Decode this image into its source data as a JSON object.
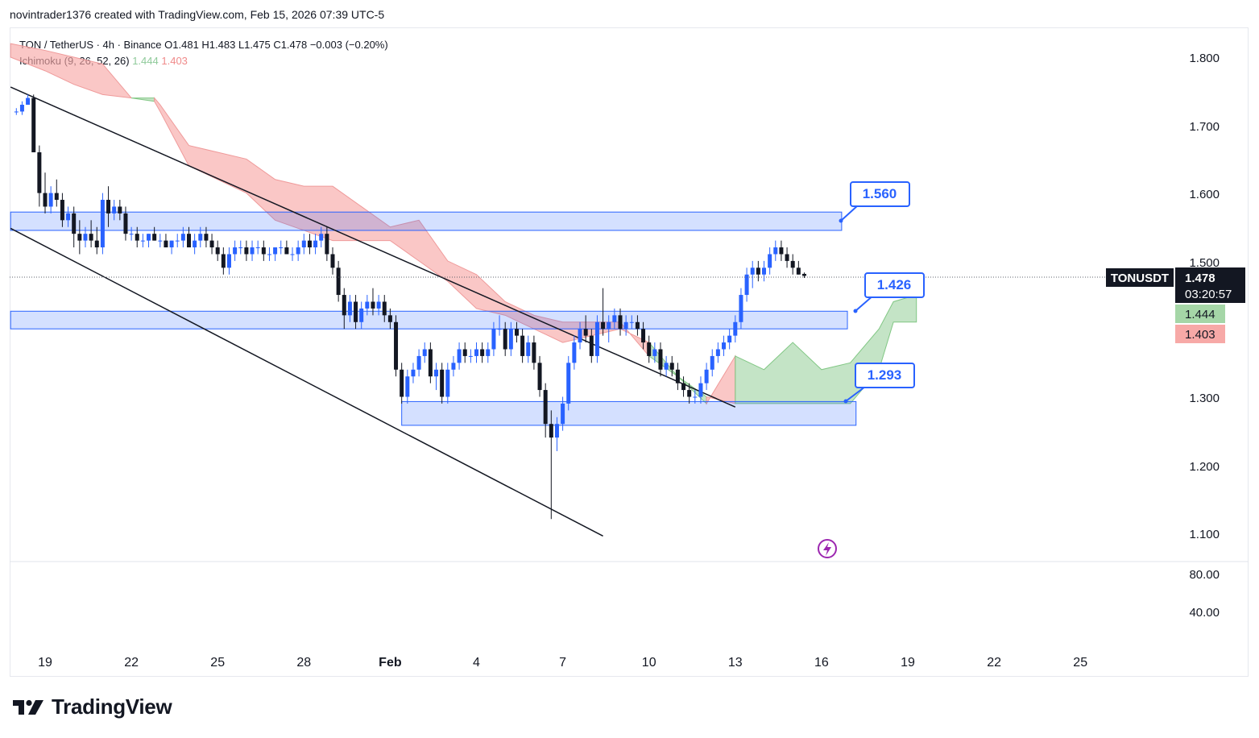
{
  "header": {
    "attribution": "novintrader1376 created with TradingView.com, Feb 15, 2026 07:39 UTC-5"
  },
  "legend": {
    "symbol_line": "TON / TetherUS · 4h · Binance  O1.481  H1.483  L1.475  C1.478  −0.003 (−0.20%)",
    "indicator_name": "Ichimoku (9, 26, 52, 26)",
    "indicator_val1": "1.444",
    "indicator_val2": "1.403"
  },
  "price_tag": {
    "symbol": "TONUSDT",
    "price": "1.478",
    "countdown": "03:20:57",
    "span_a": "1.444",
    "span_b": "1.403"
  },
  "callouts": [
    "1.560",
    "1.426",
    "1.293"
  ],
  "branding": {
    "logo_text": "TradingView"
  },
  "colors": {
    "up": "#2962ff",
    "down": "#131722",
    "cloud_green": "#a5d6a7",
    "cloud_red": "#f7a9a7",
    "zone": "#2962ff",
    "callout": "#2962ff"
  },
  "chart_data": {
    "type": "candlestick",
    "title": "TON / TetherUS · 4h · Binance",
    "y_axis": {
      "ylim": [
        1.05,
        1.82
      ],
      "ticks": [
        "1.800",
        "1.700",
        "1.600",
        "1.500",
        "1.300",
        "1.200",
        "1.100"
      ]
    },
    "oscillator_axis": {
      "ticks": [
        "80.00",
        "40.00"
      ]
    },
    "x_axis": {
      "tick_labels": [
        "19",
        "22",
        "25",
        "28",
        "Feb",
        "4",
        "7",
        "10",
        "13",
        "16",
        "19",
        "22",
        "25"
      ],
      "tick_day_index": [
        0,
        3,
        6,
        9,
        12,
        15,
        18,
        21,
        24,
        27,
        30,
        33,
        36
      ]
    },
    "zones": [
      {
        "name": "resistance-zone-1.560",
        "x0": -1.2,
        "x1": 27.7,
        "top": 1.572,
        "bottom": 1.545
      },
      {
        "name": "zone-1.426",
        "x0": -1.2,
        "x1": 27.9,
        "top": 1.426,
        "bottom": 1.4
      },
      {
        "name": "support-zone-1.293",
        "x0": 12.4,
        "x1": 28.2,
        "top": 1.293,
        "bottom": 1.258
      }
    ],
    "trendlines": [
      {
        "name": "upper-trendline",
        "x0": -1.2,
        "y0": 1.756,
        "x1": 24.0,
        "y1": 1.285
      },
      {
        "name": "lower-trendline",
        "x0": -1.2,
        "y0": 1.548,
        "x1": 19.4,
        "y1": 1.095
      }
    ],
    "ichimoku_cloud": {
      "x": [
        -1.2,
        0,
        1,
        2,
        3,
        3.8,
        4,
        5,
        6,
        7,
        8,
        9,
        10,
        11,
        12,
        13,
        14,
        15,
        16,
        17,
        18,
        19,
        20,
        21,
        22,
        23,
        24,
        25,
        26,
        27,
        28,
        29,
        29.5,
        30.3
      ],
      "span_a": [
        1.8,
        1.78,
        1.76,
        1.745,
        1.74,
        1.735,
        1.72,
        1.64,
        1.62,
        1.6,
        1.56,
        1.545,
        1.53,
        1.53,
        1.53,
        1.5,
        1.47,
        1.43,
        1.42,
        1.4,
        1.38,
        1.39,
        1.4,
        1.38,
        1.33,
        1.29,
        1.36,
        1.34,
        1.38,
        1.34,
        1.35,
        1.4,
        1.44,
        1.45
      ],
      "span_b": [
        1.82,
        1.81,
        1.8,
        1.79,
        1.74,
        1.74,
        1.73,
        1.67,
        1.66,
        1.65,
        1.62,
        1.61,
        1.61,
        1.58,
        1.55,
        1.56,
        1.5,
        1.48,
        1.44,
        1.42,
        1.41,
        1.41,
        1.41,
        1.36,
        1.33,
        1.3,
        1.29,
        1.29,
        1.29,
        1.29,
        1.29,
        1.34,
        1.41,
        1.41
      ]
    },
    "candles": [
      [
        -1.0,
        1.72,
        1.725,
        1.715,
        1.72
      ],
      [
        -0.8,
        1.72,
        1.735,
        1.715,
        1.73
      ],
      [
        -0.6,
        1.73,
        1.745,
        1.735,
        1.74
      ],
      [
        -0.4,
        1.74,
        1.745,
        1.66,
        1.66
      ],
      [
        -0.2,
        1.66,
        1.67,
        1.58,
        1.6
      ],
      [
        0.0,
        1.6,
        1.63,
        1.57,
        1.58
      ],
      [
        0.2,
        1.58,
        1.61,
        1.57,
        1.6
      ],
      [
        0.4,
        1.6,
        1.62,
        1.58,
        1.59
      ],
      [
        0.6,
        1.59,
        1.6,
        1.55,
        1.56
      ],
      [
        0.8,
        1.56,
        1.58,
        1.55,
        1.57
      ],
      [
        1.0,
        1.57,
        1.58,
        1.52,
        1.54
      ],
      [
        1.2,
        1.54,
        1.56,
        1.51,
        1.53
      ],
      [
        1.4,
        1.53,
        1.55,
        1.52,
        1.54
      ],
      [
        1.6,
        1.54,
        1.56,
        1.52,
        1.53
      ],
      [
        1.8,
        1.53,
        1.55,
        1.51,
        1.52
      ],
      [
        2.0,
        1.52,
        1.6,
        1.51,
        1.59
      ],
      [
        2.2,
        1.59,
        1.61,
        1.55,
        1.57
      ],
      [
        2.4,
        1.57,
        1.59,
        1.56,
        1.58
      ],
      [
        2.6,
        1.58,
        1.59,
        1.56,
        1.57
      ],
      [
        2.8,
        1.57,
        1.58,
        1.53,
        1.54
      ],
      [
        3.0,
        1.54,
        1.55,
        1.53,
        1.54
      ],
      [
        3.2,
        1.54,
        1.55,
        1.52,
        1.53
      ],
      [
        3.4,
        1.53,
        1.54,
        1.52,
        1.53
      ],
      [
        3.6,
        1.53,
        1.54,
        1.52,
        1.54
      ],
      [
        3.8,
        1.54,
        1.55,
        1.53,
        1.53
      ],
      [
        4.0,
        1.53,
        1.54,
        1.52,
        1.53
      ],
      [
        4.2,
        1.53,
        1.54,
        1.52,
        1.52
      ],
      [
        4.4,
        1.52,
        1.53,
        1.51,
        1.53
      ],
      [
        4.6,
        1.53,
        1.54,
        1.52,
        1.53
      ],
      [
        4.8,
        1.53,
        1.55,
        1.52,
        1.54
      ],
      [
        5.0,
        1.54,
        1.55,
        1.52,
        1.52
      ],
      [
        5.2,
        1.52,
        1.54,
        1.51,
        1.53
      ],
      [
        5.4,
        1.53,
        1.55,
        1.52,
        1.54
      ],
      [
        5.6,
        1.54,
        1.55,
        1.52,
        1.53
      ],
      [
        5.8,
        1.53,
        1.54,
        1.51,
        1.52
      ],
      [
        6.0,
        1.52,
        1.53,
        1.5,
        1.51
      ],
      [
        6.2,
        1.51,
        1.52,
        1.48,
        1.49
      ],
      [
        6.4,
        1.49,
        1.52,
        1.48,
        1.51
      ],
      [
        6.6,
        1.51,
        1.53,
        1.5,
        1.52
      ],
      [
        6.8,
        1.52,
        1.53,
        1.51,
        1.52
      ],
      [
        7.0,
        1.52,
        1.53,
        1.5,
        1.51
      ],
      [
        7.2,
        1.51,
        1.53,
        1.5,
        1.52
      ],
      [
        7.4,
        1.52,
        1.53,
        1.51,
        1.52
      ],
      [
        7.6,
        1.52,
        1.53,
        1.5,
        1.51
      ],
      [
        7.8,
        1.51,
        1.52,
        1.5,
        1.51
      ],
      [
        8.0,
        1.51,
        1.52,
        1.5,
        1.52
      ],
      [
        8.2,
        1.52,
        1.53,
        1.51,
        1.52
      ],
      [
        8.4,
        1.52,
        1.53,
        1.51,
        1.51
      ],
      [
        8.6,
        1.51,
        1.52,
        1.5,
        1.51
      ],
      [
        8.8,
        1.51,
        1.53,
        1.5,
        1.52
      ],
      [
        9.0,
        1.52,
        1.54,
        1.51,
        1.53
      ],
      [
        9.2,
        1.53,
        1.54,
        1.51,
        1.52
      ],
      [
        9.4,
        1.52,
        1.54,
        1.51,
        1.53
      ],
      [
        9.6,
        1.53,
        1.55,
        1.52,
        1.54
      ],
      [
        9.8,
        1.54,
        1.55,
        1.5,
        1.51
      ],
      [
        10.0,
        1.51,
        1.52,
        1.48,
        1.49
      ],
      [
        10.2,
        1.49,
        1.5,
        1.44,
        1.45
      ],
      [
        10.4,
        1.45,
        1.46,
        1.4,
        1.42
      ],
      [
        10.6,
        1.42,
        1.45,
        1.41,
        1.44
      ],
      [
        10.8,
        1.44,
        1.45,
        1.4,
        1.41
      ],
      [
        11.0,
        1.41,
        1.44,
        1.4,
        1.43
      ],
      [
        11.2,
        1.43,
        1.45,
        1.42,
        1.44
      ],
      [
        11.4,
        1.44,
        1.46,
        1.42,
        1.43
      ],
      [
        11.6,
        1.43,
        1.45,
        1.42,
        1.44
      ],
      [
        11.8,
        1.44,
        1.45,
        1.41,
        1.42
      ],
      [
        12.0,
        1.42,
        1.43,
        1.4,
        1.41
      ],
      [
        12.2,
        1.41,
        1.42,
        1.33,
        1.34
      ],
      [
        12.4,
        1.34,
        1.35,
        1.29,
        1.3
      ],
      [
        12.6,
        1.3,
        1.34,
        1.29,
        1.33
      ],
      [
        12.8,
        1.33,
        1.35,
        1.32,
        1.34
      ],
      [
        13.0,
        1.34,
        1.37,
        1.33,
        1.36
      ],
      [
        13.2,
        1.36,
        1.38,
        1.35,
        1.37
      ],
      [
        13.4,
        1.37,
        1.38,
        1.32,
        1.33
      ],
      [
        13.6,
        1.33,
        1.35,
        1.31,
        1.34
      ],
      [
        13.8,
        1.34,
        1.35,
        1.29,
        1.3
      ],
      [
        14.0,
        1.3,
        1.35,
        1.29,
        1.34
      ],
      [
        14.2,
        1.34,
        1.36,
        1.33,
        1.35
      ],
      [
        14.4,
        1.35,
        1.38,
        1.34,
        1.37
      ],
      [
        14.6,
        1.37,
        1.38,
        1.35,
        1.36
      ],
      [
        14.8,
        1.36,
        1.37,
        1.35,
        1.36
      ],
      [
        15.0,
        1.36,
        1.38,
        1.35,
        1.37
      ],
      [
        15.2,
        1.37,
        1.38,
        1.35,
        1.36
      ],
      [
        15.4,
        1.36,
        1.38,
        1.35,
        1.37
      ],
      [
        15.6,
        1.37,
        1.41,
        1.36,
        1.4
      ],
      [
        15.8,
        1.4,
        1.42,
        1.39,
        1.4
      ],
      [
        16.0,
        1.4,
        1.41,
        1.36,
        1.37
      ],
      [
        16.2,
        1.37,
        1.41,
        1.36,
        1.4
      ],
      [
        16.4,
        1.4,
        1.41,
        1.38,
        1.39
      ],
      [
        16.6,
        1.39,
        1.4,
        1.35,
        1.36
      ],
      [
        16.8,
        1.36,
        1.39,
        1.35,
        1.38
      ],
      [
        17.0,
        1.38,
        1.39,
        1.34,
        1.35
      ],
      [
        17.2,
        1.35,
        1.36,
        1.3,
        1.31
      ],
      [
        17.4,
        1.31,
        1.32,
        1.24,
        1.26
      ],
      [
        17.6,
        1.26,
        1.28,
        1.12,
        1.24
      ],
      [
        17.8,
        1.24,
        1.27,
        1.22,
        1.26
      ],
      [
        18.0,
        1.26,
        1.3,
        1.25,
        1.29
      ],
      [
        18.2,
        1.29,
        1.36,
        1.28,
        1.35
      ],
      [
        18.4,
        1.35,
        1.39,
        1.34,
        1.38
      ],
      [
        18.6,
        1.38,
        1.41,
        1.37,
        1.4
      ],
      [
        18.8,
        1.4,
        1.42,
        1.38,
        1.39
      ],
      [
        19.0,
        1.39,
        1.4,
        1.35,
        1.36
      ],
      [
        19.2,
        1.36,
        1.42,
        1.35,
        1.41
      ],
      [
        19.4,
        1.41,
        1.46,
        1.39,
        1.4
      ],
      [
        19.6,
        1.4,
        1.42,
        1.38,
        1.41
      ],
      [
        19.8,
        1.41,
        1.43,
        1.4,
        1.42
      ],
      [
        20.0,
        1.42,
        1.43,
        1.39,
        1.4
      ],
      [
        20.2,
        1.4,
        1.42,
        1.39,
        1.41
      ],
      [
        20.4,
        1.41,
        1.42,
        1.4,
        1.41
      ],
      [
        20.6,
        1.41,
        1.42,
        1.39,
        1.4
      ],
      [
        20.8,
        1.4,
        1.41,
        1.37,
        1.38
      ],
      [
        21.0,
        1.38,
        1.39,
        1.35,
        1.36
      ],
      [
        21.2,
        1.36,
        1.38,
        1.35,
        1.37
      ],
      [
        21.4,
        1.37,
        1.38,
        1.33,
        1.34
      ],
      [
        21.6,
        1.34,
        1.36,
        1.33,
        1.35
      ],
      [
        21.8,
        1.35,
        1.36,
        1.33,
        1.34
      ],
      [
        22.0,
        1.34,
        1.35,
        1.31,
        1.32
      ],
      [
        22.2,
        1.32,
        1.33,
        1.3,
        1.31
      ],
      [
        22.4,
        1.31,
        1.32,
        1.29,
        1.3
      ],
      [
        22.6,
        1.3,
        1.31,
        1.29,
        1.3
      ],
      [
        22.8,
        1.3,
        1.33,
        1.29,
        1.32
      ],
      [
        23.0,
        1.32,
        1.35,
        1.31,
        1.34
      ],
      [
        23.2,
        1.34,
        1.37,
        1.33,
        1.36
      ],
      [
        23.4,
        1.36,
        1.38,
        1.35,
        1.37
      ],
      [
        23.6,
        1.37,
        1.39,
        1.36,
        1.38
      ],
      [
        23.8,
        1.38,
        1.4,
        1.37,
        1.39
      ],
      [
        24.0,
        1.39,
        1.42,
        1.38,
        1.41
      ],
      [
        24.2,
        1.41,
        1.46,
        1.4,
        1.45
      ],
      [
        24.4,
        1.45,
        1.49,
        1.44,
        1.48
      ],
      [
        24.6,
        1.48,
        1.5,
        1.46,
        1.49
      ],
      [
        24.8,
        1.49,
        1.5,
        1.47,
        1.48
      ],
      [
        25.0,
        1.48,
        1.5,
        1.47,
        1.49
      ],
      [
        25.2,
        1.49,
        1.52,
        1.48,
        1.51
      ],
      [
        25.4,
        1.51,
        1.53,
        1.5,
        1.52
      ],
      [
        25.6,
        1.52,
        1.53,
        1.5,
        1.51
      ],
      [
        25.8,
        1.51,
        1.52,
        1.49,
        1.5
      ],
      [
        26.0,
        1.5,
        1.51,
        1.48,
        1.49
      ],
      [
        26.2,
        1.49,
        1.5,
        1.48,
        1.48
      ],
      [
        26.4,
        1.481,
        1.483,
        1.475,
        1.478
      ]
    ]
  }
}
